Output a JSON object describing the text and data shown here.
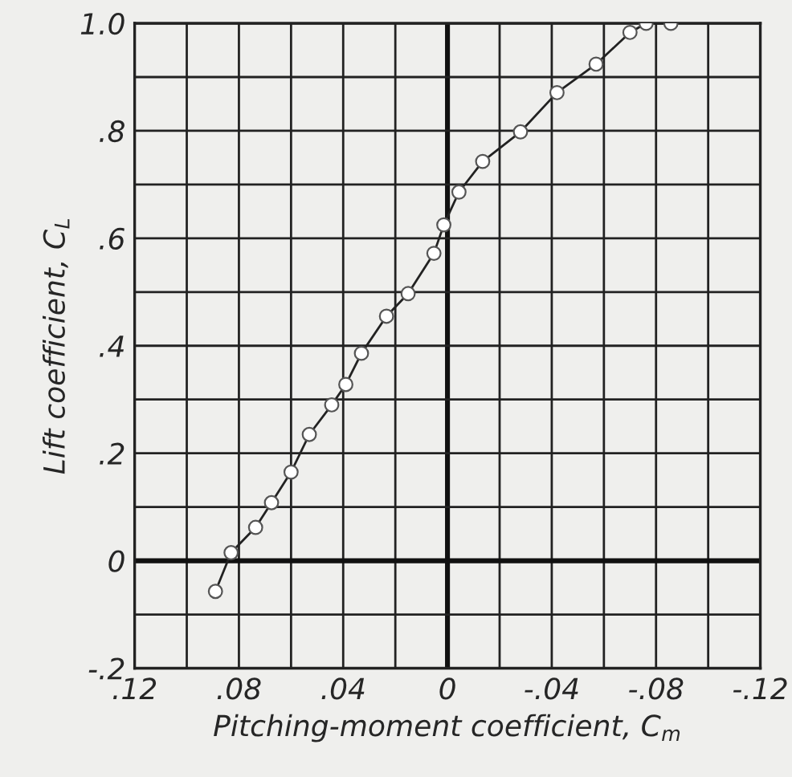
{
  "chart_data": {
    "type": "line",
    "xlabel": "Pitching-moment coefficient, C$_{m}$",
    "ylabel": "Lift coefficient, C$_{L}$",
    "x": [
      0.089,
      0.083,
      0.0736,
      0.0675,
      0.06,
      0.053,
      0.0444,
      0.039,
      0.033,
      0.0234,
      0.0151,
      0.0052,
      0.0014,
      -0.0044,
      -0.0135,
      -0.028,
      -0.042,
      -0.057,
      -0.07,
      -0.0762,
      -0.0857
    ],
    "series": [
      {
        "color": "#222222",
        "values": [
          -0.057,
          0.015,
          0.062,
          0.108,
          0.165,
          0.235,
          0.29,
          0.328,
          0.386,
          0.455,
          0.497,
          0.572,
          0.625,
          0.686,
          0.743,
          0.798,
          0.871,
          0.924,
          0.983,
          1.0,
          1.0
        ]
      }
    ],
    "xlim": [
      0.12,
      -0.12
    ],
    "xticks": [
      {
        "value": 0.12,
        "label": ".12"
      },
      {
        "value": 0.1,
        "label": null
      },
      {
        "value": 0.08,
        "label": ".08"
      },
      {
        "value": 0.06,
        "label": null
      },
      {
        "value": 0.04,
        "label": ".04"
      },
      {
        "value": 0.02,
        "label": null
      },
      {
        "value": 0,
        "label": "0"
      },
      {
        "value": -0.02,
        "label": null
      },
      {
        "value": -0.04,
        "label": "-.04"
      },
      {
        "value": -0.06,
        "label": null
      },
      {
        "value": -0.08,
        "label": "-.08"
      },
      {
        "value": -0.1,
        "label": null
      },
      {
        "value": -0.12,
        "label": "-.12"
      }
    ],
    "ylim": [
      -0.2,
      1.0
    ],
    "yticks": [
      {
        "value": -0.2,
        "label": "-.2"
      },
      {
        "value": -0.1,
        "label": null
      },
      {
        "value": 0,
        "label": "0"
      },
      {
        "value": 0.1,
        "label": null
      },
      {
        "value": 0.2,
        "label": ".2"
      },
      {
        "value": 0.3,
        "label": null
      },
      {
        "value": 0.4,
        "label": ".4"
      },
      {
        "value": 0.5,
        "label": null
      },
      {
        "value": 0.6,
        "label": ".6"
      },
      {
        "value": 0.7,
        "label": null
      },
      {
        "value": 0.8,
        "label": ".8"
      },
      {
        "value": 0.9,
        "label": null
      },
      {
        "value": 1.0,
        "label": "1.0"
      }
    ],
    "grid": true,
    "marker": "circle",
    "line_style": "solid"
  }
}
